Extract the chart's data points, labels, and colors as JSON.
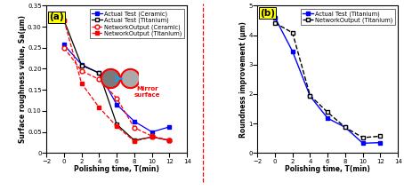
{
  "fig_width": 4.54,
  "fig_height": 2.14,
  "dpi": 100,
  "chart_a": {
    "title": "(a)",
    "xlabel": "Polishing time, T(min)",
    "ylabel": "Surface roughness value, Sa(μm)",
    "xlim": [
      -2,
      14
    ],
    "ylim": [
      0,
      0.35
    ],
    "xticks": [
      -2,
      0,
      2,
      4,
      6,
      8,
      10,
      12,
      14
    ],
    "yticks": [
      0,
      0.05,
      0.1,
      0.15,
      0.2,
      0.25,
      0.3,
      0.35
    ],
    "actual_ceramic_x": [
      0,
      2,
      4,
      6,
      8,
      10,
      12
    ],
    "actual_ceramic_y": [
      0.257,
      0.21,
      0.19,
      0.115,
      0.075,
      0.05,
      0.062
    ],
    "actual_titanium_x": [
      0,
      2,
      4,
      6,
      8,
      10,
      12
    ],
    "actual_titanium_y": [
      0.315,
      0.208,
      0.19,
      0.068,
      0.03,
      0.038,
      0.03
    ],
    "network_ceramic_x": [
      0,
      2,
      4,
      6,
      8,
      10,
      12
    ],
    "network_ceramic_y": [
      0.25,
      0.195,
      0.175,
      0.13,
      0.06,
      0.04,
      0.03
    ],
    "network_titanium_x": [
      0,
      2,
      4,
      6,
      8,
      10,
      12
    ],
    "network_titanium_y": [
      0.315,
      0.165,
      0.108,
      0.063,
      0.028,
      0.038,
      0.03
    ],
    "mirror_text": "Mirror\nsurface",
    "mirror_text_color": "red"
  },
  "chart_b": {
    "title": "(b)",
    "xlabel": "Polishing time, T(min)",
    "ylabel": "Roundness improvement (μm)",
    "xlim": [
      -2,
      14
    ],
    "ylim": [
      0,
      5
    ],
    "xticks": [
      -2,
      0,
      2,
      4,
      6,
      8,
      10,
      12,
      14
    ],
    "yticks": [
      0,
      1,
      2,
      3,
      4,
      5
    ],
    "actual_titanium_x": [
      0,
      2,
      4,
      6,
      8,
      10,
      12
    ],
    "actual_titanium_y": [
      4.6,
      3.45,
      1.93,
      1.18,
      0.87,
      0.33,
      0.35
    ],
    "network_titanium_x": [
      0,
      2,
      4,
      6,
      8,
      10,
      12
    ],
    "network_titanium_y": [
      4.42,
      4.08,
      1.95,
      1.38,
      0.87,
      0.52,
      0.57
    ]
  },
  "colors": {
    "blue": "#0000FF",
    "black": "#000000",
    "red": "#FF0000"
  },
  "label_fontsize": 5.5,
  "tick_fontsize": 5.0,
  "legend_fontsize": 4.8,
  "title_fontsize": 7.5
}
